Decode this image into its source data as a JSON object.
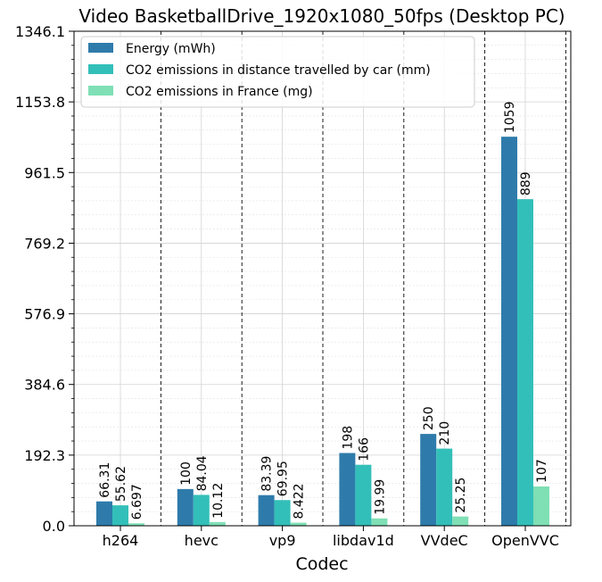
{
  "chart_data": {
    "type": "bar",
    "title": "Video BasketballDrive_1920x1080_50fps (Desktop PC)",
    "xlabel": "Codec",
    "ylabel": "",
    "categories": [
      "h264",
      "hevc",
      "vp9",
      "libdav1d",
      "VVdeC",
      "OpenVVC"
    ],
    "series": [
      {
        "name": "Energy (mWh)",
        "color": "#2e7bab",
        "values": [
          66.31,
          100,
          83.39,
          198,
          250,
          1059
        ],
        "labels": [
          "66.31",
          "100",
          "83.39",
          "198",
          "250",
          "1059"
        ]
      },
      {
        "name": "CO2 emissions in distance travelled by car (mm)",
        "color": "#33bfb9",
        "values": [
          55.62,
          84.04,
          69.95,
          166,
          210,
          889
        ],
        "labels": [
          "55.62",
          "84.04",
          "69.95",
          "166",
          "210",
          "889"
        ]
      },
      {
        "name": "CO2 emissions in France (mg)",
        "color": "#7fdfb5",
        "values": [
          6.697,
          10.12,
          8.422,
          19.99,
          25.25,
          107
        ],
        "labels": [
          "6.697",
          "10.12",
          "8.422",
          "19.99",
          "25.25",
          "107"
        ]
      }
    ],
    "ylim": [
      0,
      1346.1
    ],
    "yticks": [
      0.0,
      192.3,
      384.6,
      576.9,
      769.2,
      961.5,
      1153.8,
      1346.1
    ],
    "ytick_labels": [
      "0.0",
      "192.3",
      "384.6",
      "576.9",
      "769.2",
      "961.5",
      "1153.8",
      "1346.1"
    ],
    "grid": true,
    "legend_position": "top-left"
  }
}
